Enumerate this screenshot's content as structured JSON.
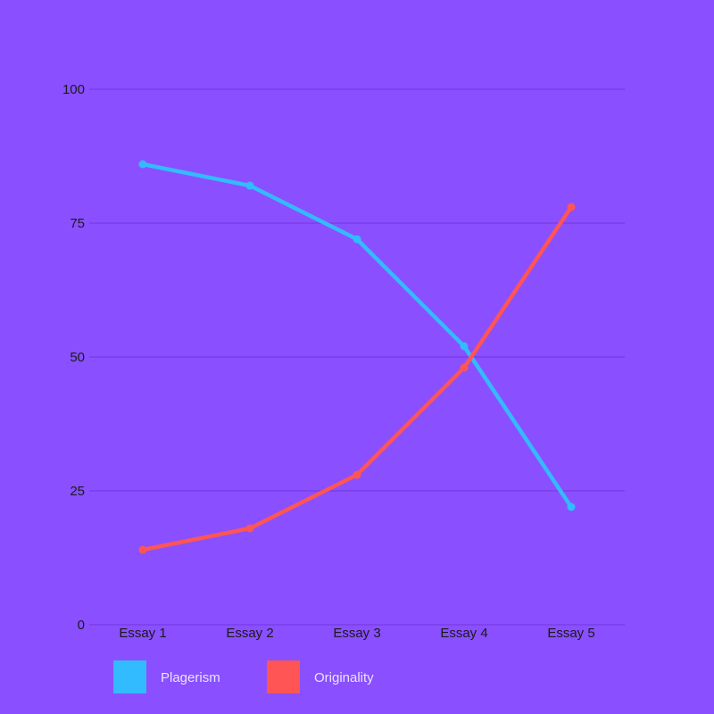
{
  "chart_data": {
    "type": "line",
    "title": "",
    "xlabel": "",
    "ylabel": "",
    "categories": [
      "Essay 1",
      "Essay 2",
      "Essay 3",
      "Essay 4",
      "Essay 5"
    ],
    "ylim": [
      0,
      100
    ],
    "yticks": [
      0,
      25,
      50,
      75,
      100
    ],
    "grid": true,
    "legend_position": "bottom-left",
    "background_color": "#8a4fff",
    "grid_color": "#7a3fe8",
    "series": [
      {
        "name": "Plagerism",
        "color": "#33bbff",
        "values": [
          86,
          82,
          72,
          52,
          22
        ]
      },
      {
        "name": "Originality",
        "color": "#ff5555",
        "values": [
          14,
          18,
          28,
          48,
          78
        ]
      }
    ]
  }
}
